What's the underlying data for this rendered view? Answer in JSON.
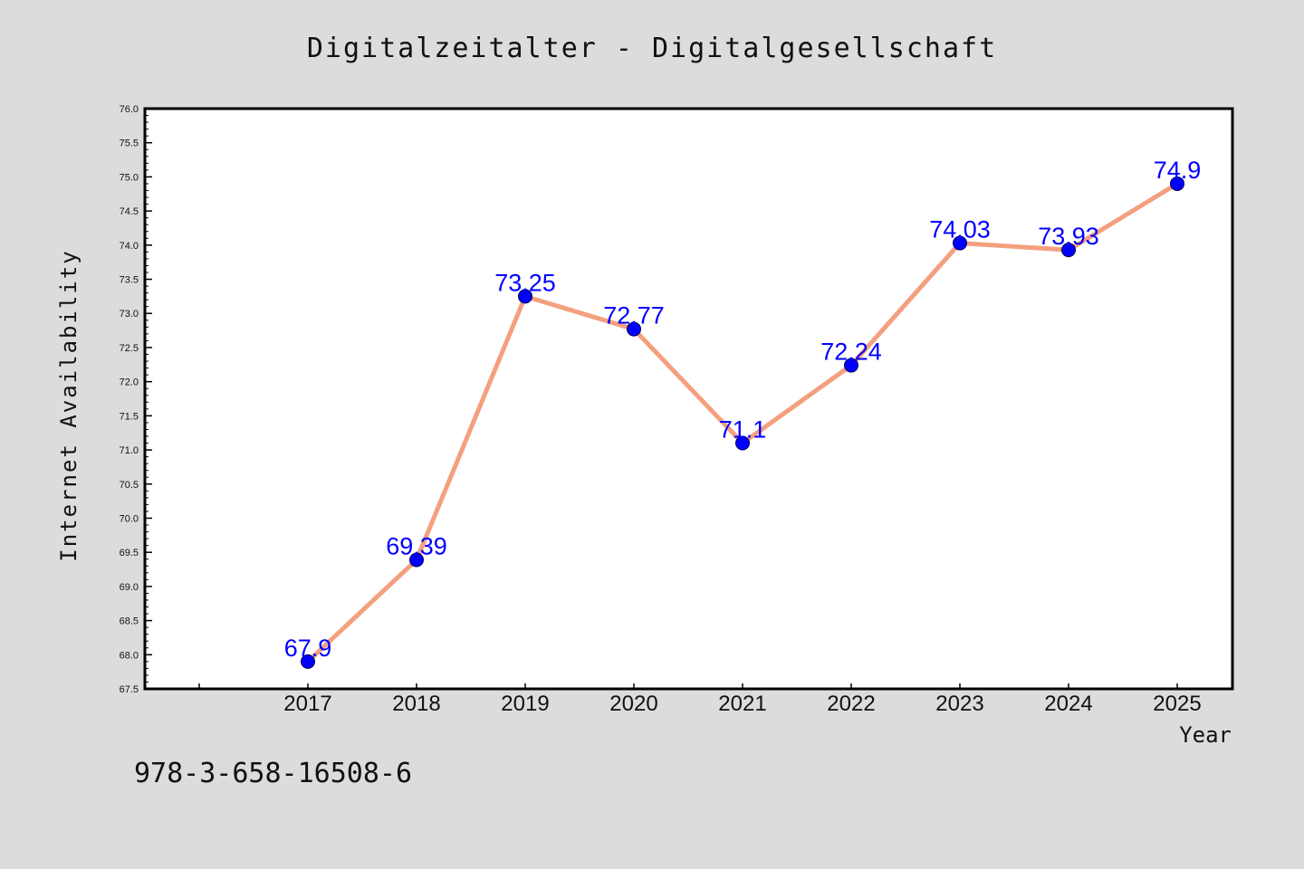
{
  "title": "Digitalzeitalter - Digitalgesellschaft",
  "footer_text": "978-3-658-16508-6",
  "colors": {
    "background": "#dcdcdc",
    "plot_background": "#ffffff",
    "line": "#f4a07e",
    "marker": "#0000ff",
    "data_label": "#0000ff",
    "axis": "#000000"
  },
  "chart_data": {
    "type": "line",
    "title": "Digitalzeitalter - Digitalgesellschaft",
    "xlabel": "Year",
    "ylabel": "Internet Availability",
    "x": [
      "2017",
      "2018",
      "2019",
      "2020",
      "2021",
      "2022",
      "2023",
      "2024",
      "2025"
    ],
    "series": [
      {
        "values": [
          67.9,
          69.39,
          73.25,
          72.77,
          71.1,
          72.24,
          74.03,
          73.93,
          74.9
        ],
        "labels": [
          "67.9",
          "69.39",
          "73.25",
          "72.77",
          "71.1",
          "72.24",
          "74.03",
          "73.93",
          "74.9"
        ]
      }
    ],
    "ylim": [
      67.5,
      76.0
    ],
    "yticks": [
      "67.5",
      "68.0",
      "68.5",
      "69.0",
      "69.5",
      "70.0",
      "70.5",
      "71.0",
      "71.5",
      "72.0",
      "72.5",
      "73.0",
      "73.5",
      "74.0",
      "74.5",
      "75.0",
      "75.5",
      "76.0"
    ],
    "grid": false,
    "legend": "none"
  }
}
